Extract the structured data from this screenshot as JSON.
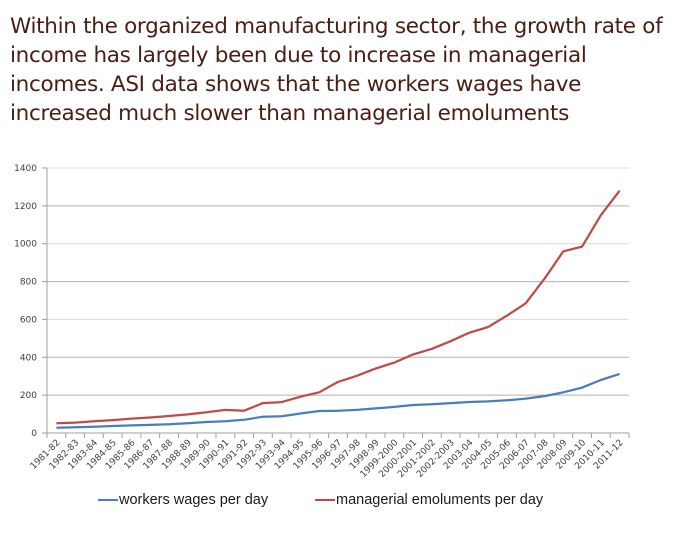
{
  "title": "Within the organized manufacturing sector, the growth rate of income has largely been due to increase in managerial incomes. ASI data shows that the workers wages have increased much slower than managerial emoluments",
  "chart_data": {
    "type": "line",
    "title": "",
    "xlabel": "",
    "ylabel": "",
    "ylim": [
      0,
      1400
    ],
    "yticks": [
      0,
      200,
      400,
      600,
      800,
      1000,
      1200,
      1400
    ],
    "grid": true,
    "legend_position": "bottom",
    "categories": [
      "1981-82",
      "1982-83",
      "1983-84",
      "1984-85",
      "1985-86",
      "1986-87",
      "1987-88",
      "1988-89",
      "1989-90",
      "1990-91",
      "1991-92",
      "1992-93",
      "1993-94",
      "1994-95",
      "1995-96",
      "1996-97",
      "1997-98",
      "1998-99",
      "1999-2000",
      "2000-2001",
      "2001-2002",
      "2002-2003",
      "2003-04",
      "2004-05",
      "2005-06",
      "2006-07",
      "2007-08",
      "2008-09",
      "2009-10",
      "2010-11",
      "2011-12"
    ],
    "series": [
      {
        "name": "workers wages per day",
        "color": "#4a7ebb",
        "values": [
          28,
          30,
          33,
          37,
          40,
          43,
          46,
          52,
          58,
          62,
          70,
          86,
          88,
          103,
          116,
          118,
          122,
          130,
          138,
          148,
          152,
          158,
          164,
          167,
          173,
          182,
          195,
          215,
          240,
          280,
          312
        ]
      },
      {
        "name": "managerial emoluments per day",
        "color": "#be4b48",
        "values": [
          52,
          55,
          62,
          68,
          76,
          82,
          90,
          98,
          110,
          122,
          118,
          158,
          163,
          192,
          215,
          270,
          302,
          340,
          372,
          415,
          445,
          485,
          530,
          560,
          620,
          685,
          815,
          960,
          985,
          1150,
          1280
        ]
      }
    ]
  }
}
